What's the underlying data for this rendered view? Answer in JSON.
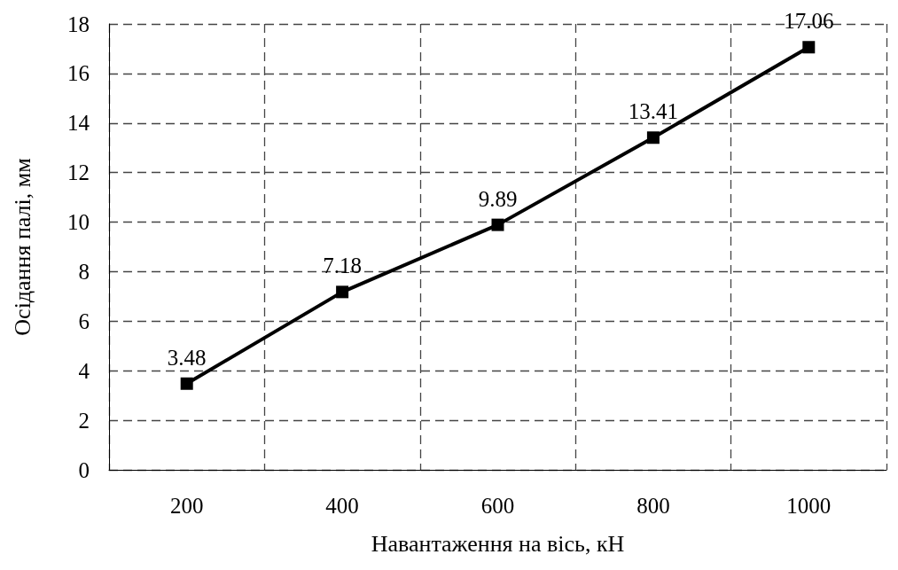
{
  "chart_data": {
    "type": "line",
    "xlabel": "Навантаження на вісь, кН",
    "ylabel": "Осідання палі, мм",
    "categories": [
      "200",
      "400",
      "600",
      "800",
      "1000"
    ],
    "values": [
      3.48,
      7.18,
      9.89,
      13.41,
      17.06
    ],
    "color": "#000000",
    "ylim": [
      0,
      18
    ],
    "yticks": [
      0,
      2,
      4,
      6,
      8,
      10,
      12,
      14,
      16,
      18
    ],
    "grid": true,
    "data_labels": true,
    "marker": "square",
    "line_style": "solid"
  }
}
